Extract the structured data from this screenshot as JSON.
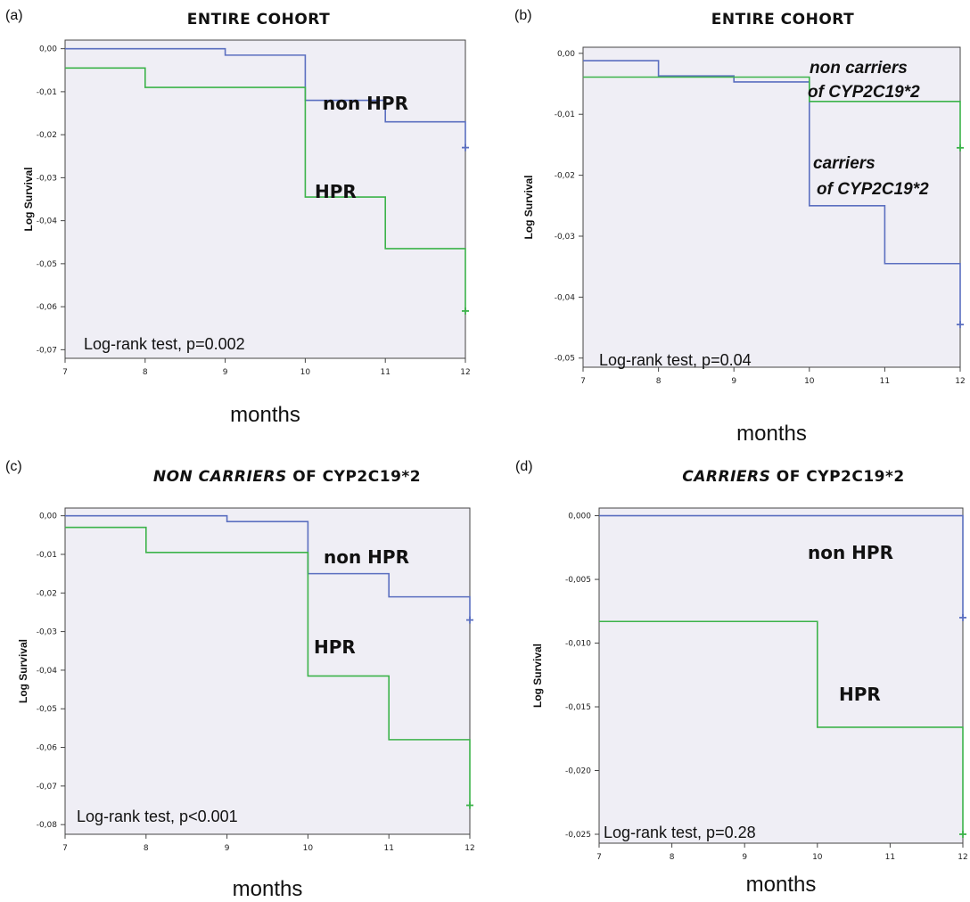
{
  "chart_data": [
    {
      "type": "line",
      "panel": "(a)",
      "title": "ENTIRE COHORT",
      "title_parts": [
        {
          "text": "ENTIRE COHORT",
          "italic": false
        }
      ],
      "xlabel": "months",
      "ylabel": "Log Survival",
      "xlim": [
        7,
        12
      ],
      "ylim": [
        -0.072,
        0.002
      ],
      "xticks": [
        7,
        8,
        9,
        10,
        11,
        12
      ],
      "yticks": [
        0,
        -0.01,
        -0.02,
        -0.03,
        -0.04,
        -0.05,
        -0.06,
        -0.07
      ],
      "ytick_labels": [
        "0,00",
        "-0,01",
        "-0,02",
        "-0,03",
        "-0,04",
        "-0,05",
        "-0,06",
        "-0,07"
      ],
      "grid": false,
      "test_text": "Log-rank test, p=0.002",
      "series": [
        {
          "color": "#5b6fc0",
          "label_lines": [
            "non HPR"
          ],
          "italic": false,
          "x": [
            7,
            9,
            10,
            11,
            12
          ],
          "y": [
            0,
            -0.0015,
            -0.012,
            -0.017,
            -0.023
          ]
        },
        {
          "color": "#3cb34a",
          "label_lines": [
            "HPR"
          ],
          "italic": false,
          "x": [
            7,
            8,
            10,
            11,
            12
          ],
          "y": [
            -0.0045,
            -0.009,
            -0.0345,
            -0.0465,
            -0.061
          ]
        }
      ]
    },
    {
      "type": "line",
      "panel": "(b)",
      "title": "ENTIRE COHORT",
      "title_parts": [
        {
          "text": "ENTIRE COHORT",
          "italic": false
        }
      ],
      "xlabel": "months",
      "ylabel": "Log Survival",
      "xlim": [
        7,
        12
      ],
      "ylim": [
        -0.0515,
        0.001
      ],
      "xticks": [
        7,
        8,
        9,
        10,
        11,
        12
      ],
      "yticks": [
        0,
        -0.01,
        -0.02,
        -0.03,
        -0.04,
        -0.05
      ],
      "ytick_labels": [
        "0,00",
        "-0,01",
        "-0,02",
        "-0,03",
        "-0,04",
        "-0,05"
      ],
      "grid": false,
      "test_text": "Log-rank test, p=0.04",
      "series": [
        {
          "color": "#5b6fc0",
          "label_lines": [
            "carriers",
            "of CYP2C19*2"
          ],
          "italic": true,
          "x": [
            7,
            8,
            9,
            10,
            11,
            12
          ],
          "y": [
            -0.0012,
            -0.0037,
            -0.0047,
            -0.025,
            -0.0345,
            -0.0445
          ]
        },
        {
          "color": "#3cb34a",
          "label_lines": [
            "non carriers",
            "of CYP2C19*2"
          ],
          "italic": true,
          "x": [
            7,
            10,
            12
          ],
          "y": [
            -0.0039,
            -0.0079,
            -0.0155
          ]
        }
      ]
    },
    {
      "type": "line",
      "panel": "(c)",
      "title": "NON CARRIERS OF CYP2C19*2",
      "title_parts": [
        {
          "text": "NON CARRIERS ",
          "italic": true
        },
        {
          "text": "OF CYP2C19*2",
          "italic": false
        }
      ],
      "xlabel": "months",
      "ylabel": "Log Survival",
      "xlim": [
        7,
        12
      ],
      "ylim": [
        -0.0825,
        0.002
      ],
      "xticks": [
        7,
        8,
        9,
        10,
        11,
        12
      ],
      "yticks": [
        0,
        -0.01,
        -0.02,
        -0.03,
        -0.04,
        -0.05,
        -0.06,
        -0.07,
        -0.08
      ],
      "ytick_labels": [
        "0,00",
        "-0,01",
        "-0,02",
        "-0,03",
        "-0,04",
        "-0,05",
        "-0,06",
        "-0,07",
        "-0,08"
      ],
      "grid": false,
      "test_text": "Log-rank test, p<0.001",
      "series": [
        {
          "color": "#5b6fc0",
          "label_lines": [
            "non HPR"
          ],
          "italic": false,
          "x": [
            7,
            9,
            10,
            11,
            12
          ],
          "y": [
            0,
            -0.0015,
            -0.015,
            -0.021,
            -0.027
          ]
        },
        {
          "color": "#3cb34a",
          "label_lines": [
            "HPR"
          ],
          "italic": false,
          "x": [
            7,
            8,
            10,
            11,
            12
          ],
          "y": [
            -0.003,
            -0.0095,
            -0.0415,
            -0.058,
            -0.075
          ]
        }
      ]
    },
    {
      "type": "line",
      "panel": "(d)",
      "title": "CARRIERS OF CYP2C19*2",
      "title_parts": [
        {
          "text": "CARRIERS ",
          "italic": true
        },
        {
          "text": "OF CYP2C19*2",
          "italic": false
        }
      ],
      "xlabel": "months",
      "ylabel": "Log Survival",
      "xlim": [
        7,
        12
      ],
      "ylim": [
        -0.0257,
        0.0006
      ],
      "xticks": [
        7,
        8,
        9,
        10,
        11,
        12
      ],
      "yticks": [
        0,
        -0.005,
        -0.01,
        -0.015,
        -0.02,
        -0.025
      ],
      "ytick_labels": [
        "0,000",
        "-0,005",
        "-0,010",
        "-0,015",
        "-0,020",
        "-0,025"
      ],
      "grid": false,
      "test_text": "Log-rank test, p=0.28",
      "series": [
        {
          "color": "#5b6fc0",
          "label_lines": [
            "non HPR"
          ],
          "italic": false,
          "x": [
            7,
            12
          ],
          "y": [
            0,
            -0.008
          ]
        },
        {
          "color": "#3cb34a",
          "label_lines": [
            "HPR"
          ],
          "italic": false,
          "x": [
            7,
            10,
            12
          ],
          "y": [
            -0.0083,
            -0.0166,
            -0.025
          ]
        }
      ]
    }
  ]
}
